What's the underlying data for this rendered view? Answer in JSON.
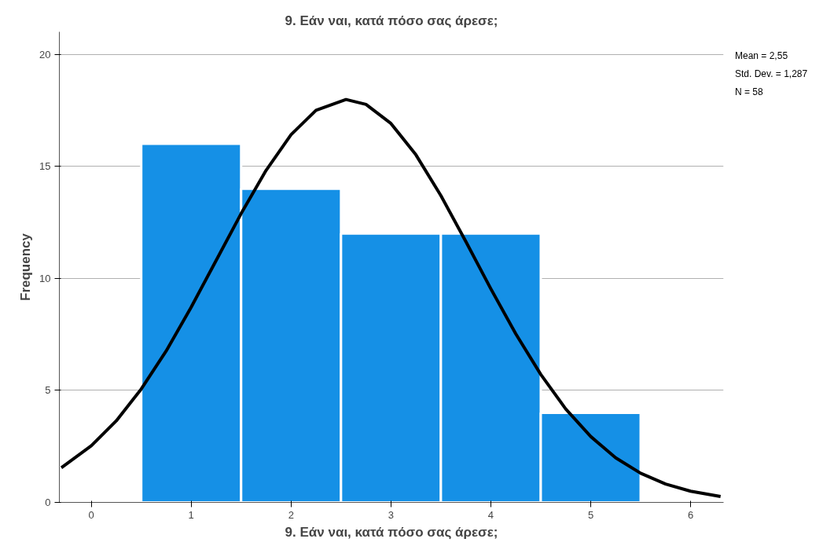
{
  "chart_data": {
    "type": "histogram",
    "title": "9. Εάν ναι, κατά πόσο σας άρεσε;",
    "xlabel": "9. Εάν ναι, κατά πόσο σας άρεσε;",
    "ylabel": "Frequency",
    "bins": [
      0.5,
      1.5,
      2.5,
      3.5,
      4.5,
      5.5
    ],
    "values": [
      16,
      14,
      12,
      12,
      4
    ],
    "color": "#1590e6",
    "series": [
      {
        "type": "line",
        "color": "#000000",
        "x": [
          -0.3,
          0,
          0.25,
          0.5,
          0.75,
          1,
          1.25,
          1.5,
          1.75,
          2,
          2.25,
          2.55,
          2.75,
          3,
          3.25,
          3.5,
          3.75,
          4,
          4.25,
          4.5,
          4.75,
          5,
          5.25,
          5.5,
          5.75,
          6,
          6.3
        ],
        "values": [
          1.55,
          2.53,
          3.64,
          5.06,
          6.76,
          8.71,
          10.8,
          12.89,
          14.82,
          16.41,
          17.5,
          17.98,
          17.76,
          16.91,
          15.51,
          13.69,
          11.64,
          9.53,
          7.52,
          5.71,
          4.17,
          2.94,
          1.99,
          1.3,
          0.82,
          0.5,
          0.26
        ]
      }
    ],
    "annotations": [
      "Mean = 2,55",
      "Std. Dev. = 1,287",
      "N = 58"
    ],
    "xlim": [
      -0.32,
      6.33
    ],
    "ylim": [
      0,
      21
    ],
    "xticks": [
      0,
      1,
      2,
      3,
      4,
      5,
      6
    ],
    "yticks": [
      0,
      5,
      10,
      15,
      20
    ],
    "grid": "y"
  }
}
